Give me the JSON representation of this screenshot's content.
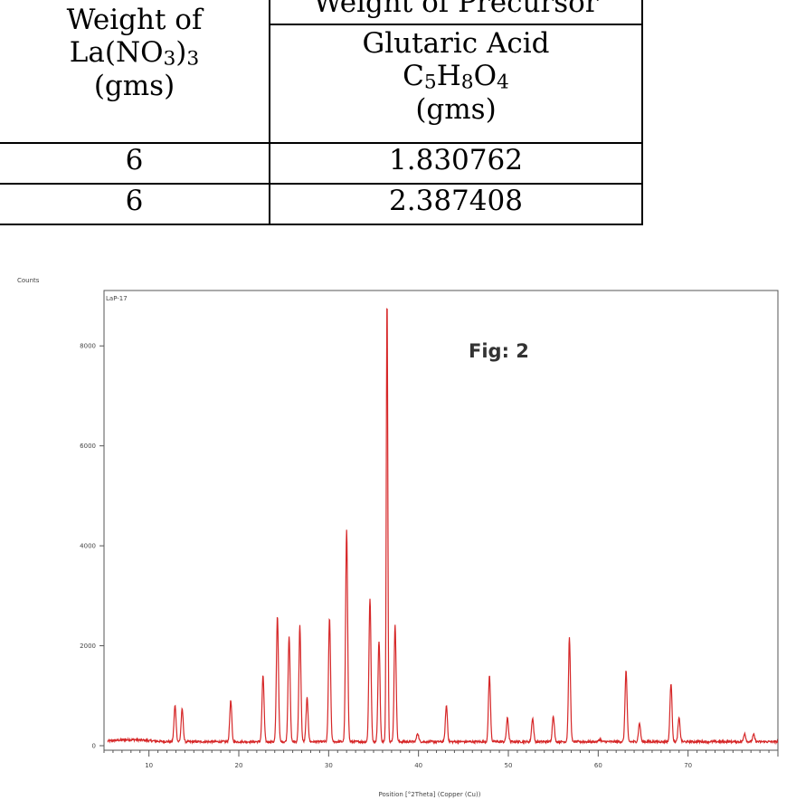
{
  "table": {
    "col1_header_line1": "Weight of",
    "col1_header_line2_main": "La(NO",
    "col1_header_line2_sub1": "3",
    "col1_header_line2_close": ")",
    "col1_header_line2_sub2": "3",
    "col1_header_line3": "(gms)",
    "col2_group_header": "Weight of Precursor",
    "col2_sub_header_line1": "Glutaric Acid",
    "col2_formula_C": "C",
    "col2_formula_C_sub": "5",
    "col2_formula_H": "H",
    "col2_formula_H_sub": "8",
    "col2_formula_O": "O",
    "col2_formula_O_sub": "4",
    "col2_sub_header_line3": "(gms)",
    "rows": [
      {
        "la": "6",
        "glutaric": "1.830762"
      },
      {
        "la": "6",
        "glutaric": "2.387408"
      }
    ]
  },
  "figure": {
    "label": "Fig: 2",
    "sample_label": "LaP-17"
  },
  "chart_data": {
    "type": "line",
    "title": "",
    "xlabel": "Position [°2Theta] (Copper (Cu))",
    "ylabel": "Counts",
    "xlim": [
      5,
      80
    ],
    "ylim": [
      0,
      9000
    ],
    "x_ticks": [
      "10",
      "20",
      "30",
      "40",
      "50",
      "60",
      "70"
    ],
    "y_ticks": [
      "0",
      "2000",
      "4000",
      "6000",
      "8000"
    ],
    "series": [
      {
        "name": "",
        "color": "#d62728",
        "baseline": 80,
        "peaks": [
          {
            "x": 12.9,
            "y": 800
          },
          {
            "x": 13.7,
            "y": 730
          },
          {
            "x": 19.1,
            "y": 900
          },
          {
            "x": 22.7,
            "y": 1400
          },
          {
            "x": 24.3,
            "y": 2600
          },
          {
            "x": 25.6,
            "y": 2200
          },
          {
            "x": 26.8,
            "y": 2400
          },
          {
            "x": 27.6,
            "y": 950
          },
          {
            "x": 30.1,
            "y": 2550
          },
          {
            "x": 32.0,
            "y": 4300
          },
          {
            "x": 34.6,
            "y": 2950
          },
          {
            "x": 35.6,
            "y": 2100
          },
          {
            "x": 36.5,
            "y": 9000
          },
          {
            "x": 37.4,
            "y": 2400
          },
          {
            "x": 39.9,
            "y": 250
          },
          {
            "x": 43.1,
            "y": 800
          },
          {
            "x": 47.9,
            "y": 1400
          },
          {
            "x": 49.9,
            "y": 550
          },
          {
            "x": 52.7,
            "y": 550
          },
          {
            "x": 55.0,
            "y": 600
          },
          {
            "x": 56.8,
            "y": 2150
          },
          {
            "x": 60.2,
            "y": 130
          },
          {
            "x": 63.1,
            "y": 1500
          },
          {
            "x": 64.6,
            "y": 450
          },
          {
            "x": 68.1,
            "y": 1250
          },
          {
            "x": 69.0,
            "y": 550
          },
          {
            "x": 76.3,
            "y": 250
          },
          {
            "x": 77.3,
            "y": 220
          }
        ]
      }
    ]
  }
}
